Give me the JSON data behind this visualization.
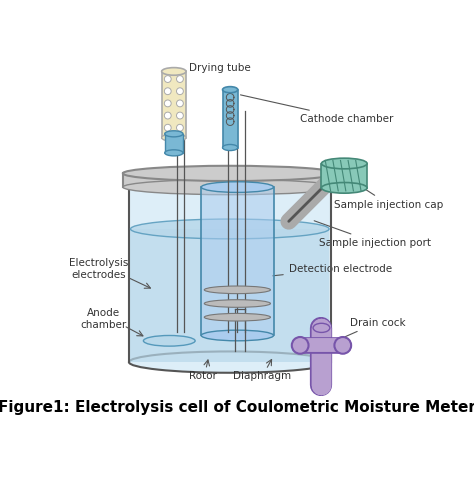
{
  "title": "Figure1: Electrolysis cell of Coulometric Moisture Meter",
  "title_fontsize": 11,
  "labels": {
    "drying_tube": "Drying tube",
    "cathode_chamber": "Cathode chamber",
    "sample_injection_cap": "Sample injection cap",
    "sample_injection_port": "Sample injection port",
    "detection_electrode": "Detection electrode",
    "drain_cock": "Drain cock",
    "electrolysis_electrodes": "Electrolysis\nelectrodes",
    "anode_chamber": "Anode\nchamber",
    "rotor": "Rotor",
    "diaphragm": "Diaphragm"
  },
  "colors": {
    "bg_color": "#ffffff",
    "vessel_body": "#ddeef8",
    "vessel_outline": "#555555",
    "liquid": "#b8d8ea",
    "liquid_outline": "#5599bb",
    "lid": "#cccccc",
    "lid_outline": "#888888",
    "drying_tube_body": "#f0e8c0",
    "drying_tube_outline": "#aaaaaa",
    "cathode_tube": "#7ab8d4",
    "cathode_outline": "#4488aa",
    "injection_cap": "#88c9b8",
    "injection_cap_outline": "#448877",
    "injection_port_outline": "#888888",
    "drain_cock_body": "#b8a0d0",
    "drain_cock_outline": "#7755aa",
    "electrode_disk": "#bbbbbb",
    "electrode_outline": "#777777",
    "inner_vessel": "#aaccee",
    "inner_vessel_outline": "#4488aa",
    "text_color": "#333333",
    "annotation_line": "#555555",
    "wire_color": "#555555"
  }
}
